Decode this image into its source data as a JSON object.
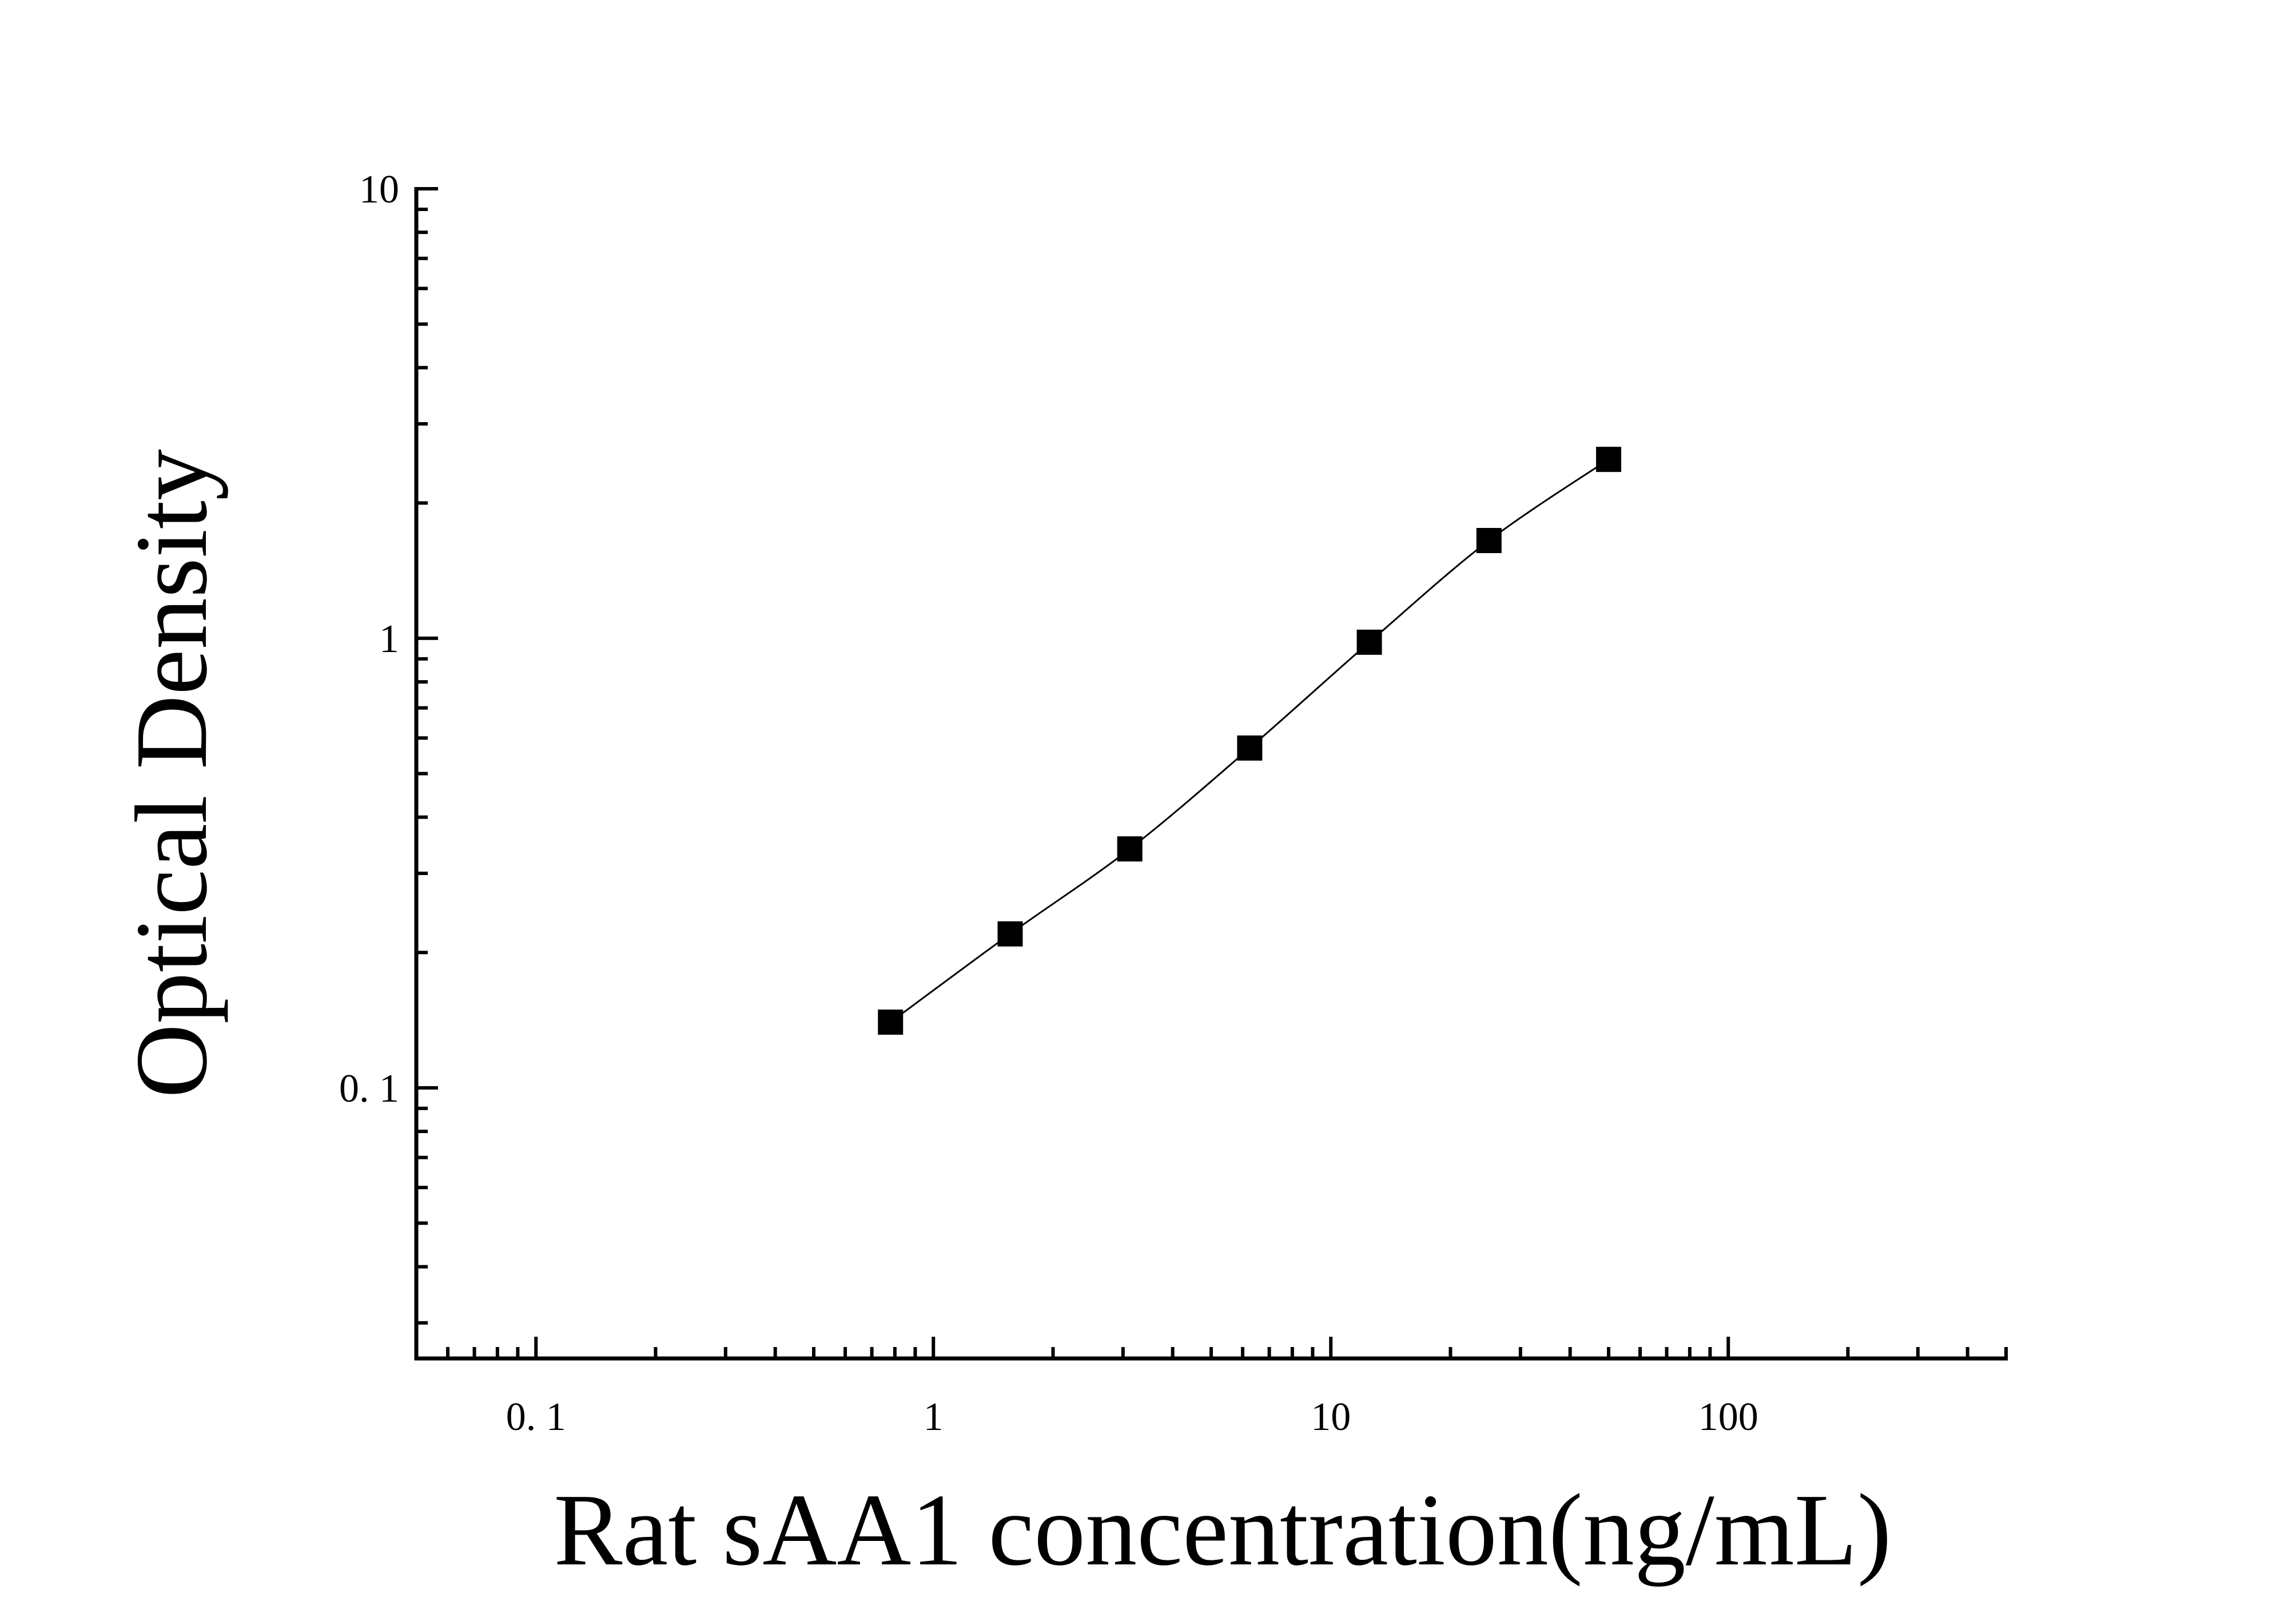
{
  "chart_data": {
    "type": "scatter",
    "title": "",
    "xlabel": "Rat sAA1 concentration(ng/mL)",
    "ylabel": "Optical Density",
    "x_scale": "log",
    "y_scale": "log",
    "xlim": [
      0.05,
      500
    ],
    "ylim": [
      0.025,
      10
    ],
    "x_ticks": [
      {
        "value": 0.1,
        "label": "0. 1"
      },
      {
        "value": 1,
        "label": "1"
      },
      {
        "value": 10,
        "label": "10"
      },
      {
        "value": 100,
        "label": "100"
      }
    ],
    "y_ticks": [
      {
        "value": 0.1,
        "label": "0. 1"
      },
      {
        "value": 1,
        "label": "1"
      },
      {
        "value": 10,
        "label": "10"
      }
    ],
    "grid": false,
    "legend": "none",
    "series": [
      {
        "x": [
          0.78,
          1.56,
          3.12,
          6.25,
          12.5,
          25,
          50
        ],
        "y": [
          0.14,
          0.22,
          0.34,
          0.57,
          0.98,
          1.65,
          2.5
        ],
        "marker": "square",
        "color": "#000000",
        "fit_line": true
      }
    ]
  }
}
